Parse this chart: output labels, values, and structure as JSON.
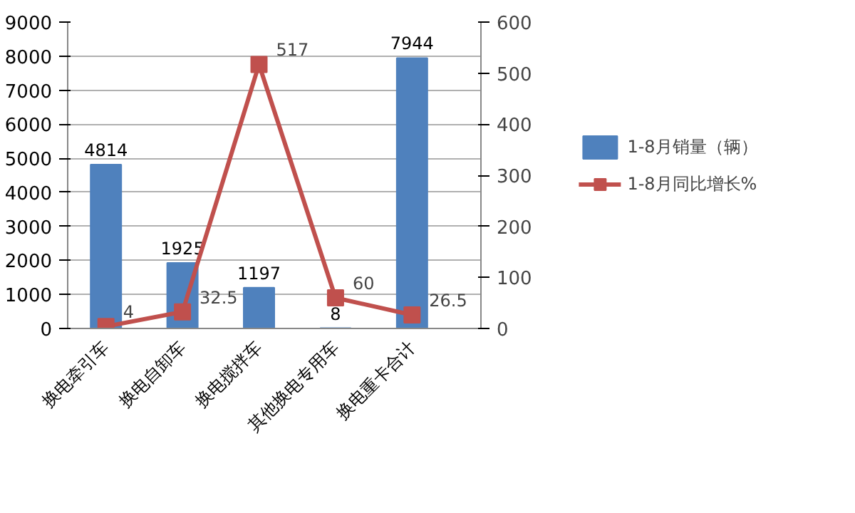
{
  "chart_data": {
    "type": "bar",
    "categories": [
      "换电牵引车",
      "换电自卸车",
      "换电搅拌车",
      "其他换电专用车",
      "换电重卡合计"
    ],
    "series": [
      {
        "name": "1-8月销量（辆）",
        "color": "#4f81bd",
        "values": [
          4814,
          1925,
          1197,
          8,
          7944
        ]
      },
      {
        "name": "1-8月同比增长%",
        "type": "line",
        "axis": "y2",
        "color": "#c0504d",
        "marker": "square",
        "values": [
          4,
          32.5,
          517,
          60,
          26.5
        ]
      }
    ],
    "ylim": [
      0,
      9000
    ],
    "yticks": [
      0,
      1000,
      2000,
      3000,
      4000,
      5000,
      6000,
      7000,
      8000,
      9000
    ],
    "y2lim": [
      0,
      600
    ],
    "y2ticks": [
      0,
      100,
      200,
      300,
      400,
      500,
      600
    ],
    "grid": "y",
    "legend": "right",
    "data_labels": true
  }
}
